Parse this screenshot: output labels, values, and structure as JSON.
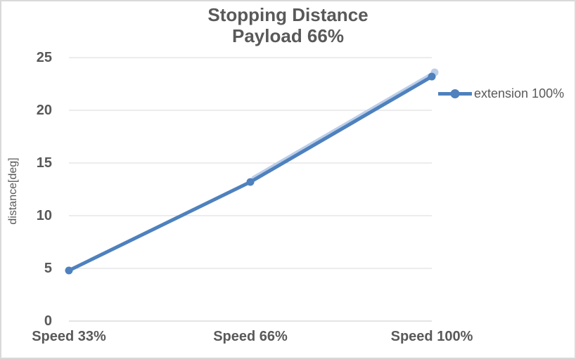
{
  "window": {
    "background": "#FFFFFF",
    "border_color": "#D9D9D9"
  },
  "chart_data": {
    "type": "line",
    "title_line1": "Stopping Distance",
    "title_line2": "Payload 66%",
    "categories": [
      "Speed 33%",
      "Speed 66%",
      "Speed 100%"
    ],
    "series": [
      {
        "name": "extension 100%",
        "values": [
          4.8,
          13.2,
          23.2
        ],
        "color": "#4E81BD",
        "marker": "circle"
      }
    ],
    "xlabel": "",
    "ylabel": "distance[deg]",
    "ylim": [
      0,
      25
    ],
    "yticks": [
      0,
      5,
      10,
      15,
      20,
      25
    ],
    "grid": "horizontal-only",
    "legend_position": "center-right",
    "legend_entries": [
      "extension 100%"
    ],
    "colors": {
      "series": "#4E81BD",
      "series_glow": "#BCCEE8",
      "gridline": "#D9D9D9",
      "baseline": "#C9C9C9",
      "text": "#595959"
    }
  }
}
